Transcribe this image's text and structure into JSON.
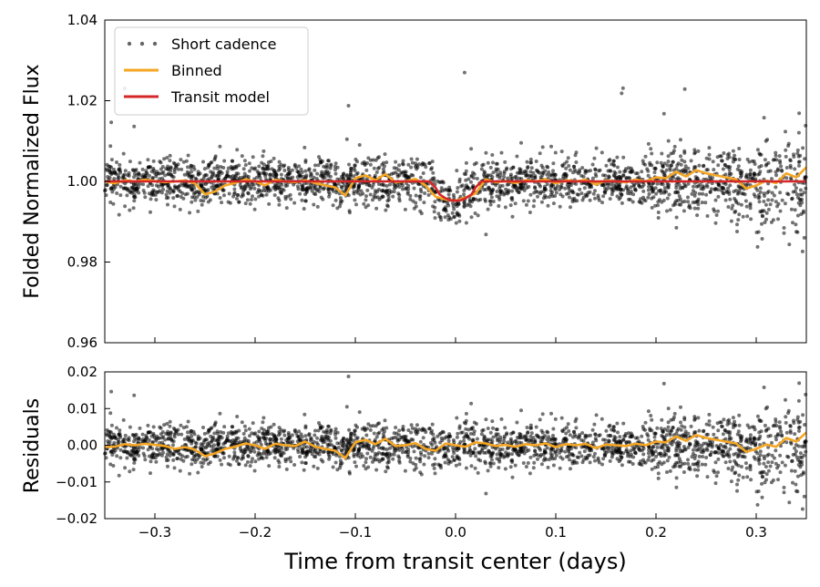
{
  "chart_data": [
    {
      "panel": "top",
      "type": "scatter",
      "xlabel": "",
      "ylabel": "Folded Normalized Flux",
      "xlim": [
        -0.35,
        0.35
      ],
      "ylim": [
        0.96,
        1.04
      ],
      "xticks": [
        -0.3,
        -0.2,
        -0.1,
        0.0,
        0.1,
        0.2,
        0.3
      ],
      "yticks": [
        0.96,
        0.98,
        1.0,
        1.02,
        1.04
      ],
      "ytick_labels": [
        "0.96",
        "0.98",
        "1.00",
        "1.02",
        "1.04"
      ],
      "legend": {
        "placement": "top-left",
        "entries": [
          "Short cadence",
          "Binned",
          "Transit model"
        ]
      },
      "series": [
        {
          "name": "Short cadence",
          "kind": "points",
          "color": "#000000",
          "approx_scatter_sigma": 0.003,
          "n_points": 2400,
          "note_dip": "depth 0.005 centered at 0.0, duration 0.05 days"
        },
        {
          "name": "Binned",
          "kind": "line",
          "color": "#f5a623",
          "x": [
            -0.35,
            -0.34,
            -0.33,
            -0.32,
            -0.31,
            -0.3,
            -0.29,
            -0.28,
            -0.27,
            -0.26,
            -0.25,
            -0.24,
            -0.23,
            -0.22,
            -0.21,
            -0.2,
            -0.19,
            -0.18,
            -0.17,
            -0.16,
            -0.15,
            -0.14,
            -0.13,
            -0.12,
            -0.11,
            -0.1,
            -0.09,
            -0.08,
            -0.07,
            -0.06,
            -0.05,
            -0.04,
            -0.03,
            -0.02,
            -0.01,
            0.0,
            0.01,
            0.02,
            0.03,
            0.04,
            0.05,
            0.06,
            0.07,
            0.08,
            0.09,
            0.1,
            0.11,
            0.12,
            0.13,
            0.14,
            0.15,
            0.16,
            0.17,
            0.18,
            0.19,
            0.2,
            0.21,
            0.22,
            0.23,
            0.24,
            0.25,
            0.26,
            0.27,
            0.28,
            0.29,
            0.3,
            0.31,
            0.32,
            0.33,
            0.34,
            0.35
          ],
          "y": [
            1.0,
            0.9995,
            1.0003,
            1.0,
            1.0004,
            1.0001,
            0.9998,
            1.0,
            1.0002,
            0.9995,
            0.9968,
            0.9975,
            0.999,
            0.9996,
            1.0005,
            1.0,
            0.999,
            1.0004,
            1.0,
            0.9998,
            1.0003,
            0.9996,
            0.999,
            0.9985,
            0.9965,
            1.0008,
            1.0015,
            1.0003,
            1.0018,
            0.9998,
            1.0,
            1.0006,
            0.999,
            0.9962,
            0.9955,
            0.9952,
            0.996,
            0.997,
            1.0005,
            0.9998,
            1.0001,
            0.9996,
            1.0003,
            1.0,
            1.0005,
            0.9995,
            1.0003,
            1.0,
            1.0004,
            0.9992,
            1.0002,
            1.0,
            0.9998,
            1.0004,
            1.0,
            1.001,
            1.0008,
            1.0024,
            1.0012,
            1.0028,
            1.002,
            1.0015,
            1.001,
            1.0005,
            0.9982,
            0.999,
            1.0002,
            0.9996,
            1.002,
            1.001,
            1.0035
          ]
        },
        {
          "name": "Transit model",
          "kind": "line",
          "color": "#d62728",
          "x": [
            -0.35,
            -0.026,
            -0.02,
            -0.016,
            -0.01,
            -0.005,
            0.0,
            0.005,
            0.01,
            0.016,
            0.02,
            0.026,
            0.35
          ],
          "y": [
            1.0,
            1.0,
            0.9985,
            0.9968,
            0.9958,
            0.9953,
            0.9952,
            0.9953,
            0.9958,
            0.9968,
            0.9985,
            1.0,
            1.0
          ]
        }
      ]
    },
    {
      "panel": "bottom",
      "type": "scatter",
      "xlabel": "Time from transit center (days)",
      "ylabel": "Residuals",
      "xlim": [
        -0.35,
        0.35
      ],
      "ylim": [
        -0.02,
        0.02
      ],
      "xticks": [
        -0.3,
        -0.2,
        -0.1,
        0.0,
        0.1,
        0.2,
        0.3
      ],
      "xtick_labels": [
        "−0.3",
        "−0.2",
        "−0.1",
        "0.0",
        "0.1",
        "0.2",
        "0.3"
      ],
      "yticks": [
        -0.02,
        -0.01,
        0.0,
        0.01,
        0.02
      ],
      "ytick_labels": [
        "−0.02",
        "−0.01",
        "0.00",
        "0.01",
        "0.02"
      ],
      "series": [
        {
          "name": "Short cadence",
          "kind": "points",
          "color": "#000000",
          "approx_scatter_sigma": 0.003,
          "n_points": 2400
        },
        {
          "name": "Binned",
          "kind": "line",
          "color": "#f5a623",
          "x": [
            -0.35,
            -0.34,
            -0.33,
            -0.32,
            -0.31,
            -0.3,
            -0.29,
            -0.28,
            -0.27,
            -0.26,
            -0.25,
            -0.24,
            -0.23,
            -0.22,
            -0.21,
            -0.2,
            -0.19,
            -0.18,
            -0.17,
            -0.16,
            -0.15,
            -0.14,
            -0.13,
            -0.12,
            -0.11,
            -0.1,
            -0.09,
            -0.08,
            -0.07,
            -0.06,
            -0.05,
            -0.04,
            -0.03,
            -0.02,
            -0.01,
            0.0,
            0.01,
            0.02,
            0.03,
            0.04,
            0.05,
            0.06,
            0.07,
            0.08,
            0.09,
            0.1,
            0.11,
            0.12,
            0.13,
            0.14,
            0.15,
            0.16,
            0.17,
            0.18,
            0.19,
            0.2,
            0.21,
            0.22,
            0.23,
            0.24,
            0.25,
            0.26,
            0.27,
            0.28,
            0.29,
            0.3,
            0.31,
            0.32,
            0.33,
            0.34,
            0.35
          ],
          "y": [
            -0.0005,
            -0.0004,
            0.0003,
            0.0,
            0.0004,
            0.0001,
            -0.0002,
            -0.001,
            -0.0005,
            -0.0012,
            -0.003,
            -0.0022,
            -0.001,
            -0.0004,
            0.0005,
            0.0,
            -0.001,
            0.0004,
            0.0,
            -0.0002,
            0.001,
            -0.0004,
            -0.001,
            -0.0015,
            -0.0035,
            0.0008,
            0.0015,
            0.0003,
            0.0018,
            -0.0002,
            0.0,
            0.0006,
            -0.001,
            -0.0015,
            0.0005,
            0.0,
            -0.0004,
            0.0008,
            0.0005,
            -0.0002,
            0.0001,
            -0.0004,
            0.0003,
            0.0,
            0.0005,
            -0.0005,
            0.0003,
            0.0,
            0.0004,
            -0.0008,
            0.0002,
            0.0,
            -0.0002,
            0.0004,
            0.0,
            0.001,
            0.0008,
            0.0024,
            0.0012,
            0.0028,
            0.002,
            0.0015,
            0.001,
            0.0005,
            -0.0018,
            -0.001,
            0.0002,
            -0.0004,
            0.002,
            0.001,
            0.0035
          ]
        }
      ]
    }
  ]
}
